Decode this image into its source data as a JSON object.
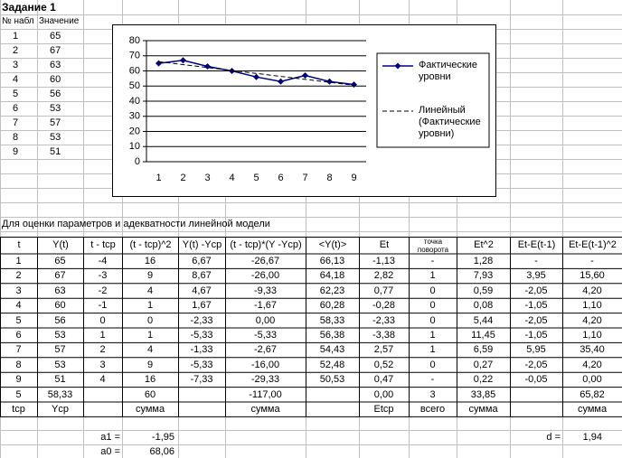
{
  "title": "Задание 1",
  "small_table": {
    "headers": [
      "№ набл",
      "Значение"
    ],
    "rows": [
      [
        "1",
        "65"
      ],
      [
        "2",
        "67"
      ],
      [
        "3",
        "63"
      ],
      [
        "4",
        "60"
      ],
      [
        "5",
        "56"
      ],
      [
        "6",
        "53"
      ],
      [
        "7",
        "57"
      ],
      [
        "8",
        "53"
      ],
      [
        "9",
        "51"
      ]
    ]
  },
  "chart_data": {
    "type": "line",
    "categories": [
      "1",
      "2",
      "3",
      "4",
      "5",
      "6",
      "7",
      "8",
      "9"
    ],
    "series": [
      {
        "name": "Фактические уровни",
        "color": "#000080",
        "marker": "diamond",
        "values": [
          65,
          67,
          63,
          60,
          56,
          53,
          57,
          53,
          51
        ]
      },
      {
        "name": "Линейный (Фактические уровни)",
        "color": "#000000",
        "dash": true,
        "values": [
          66.13,
          64.18,
          62.23,
          60.28,
          58.33,
          56.38,
          54.43,
          52.48,
          50.53
        ]
      }
    ],
    "ylim": [
      0,
      80
    ],
    "yticks": [
      0,
      10,
      20,
      30,
      40,
      50,
      60,
      70,
      80
    ],
    "grid": true,
    "legend": "right"
  },
  "section_title": "Для оценки параметров и адекватности линейной модели",
  "table": {
    "headers": [
      "t",
      "Y(t)",
      "t - tcp",
      "(t - tcp)^2",
      "Y(t) -Ycp",
      "(t - tcp)*(Y -Ycp)",
      "<Y(t)>",
      "Et",
      "точка поворота",
      "Et^2",
      "Et-E(t-1)",
      "Et-E(t-1)^2"
    ],
    "rows": [
      [
        "1",
        "65",
        "-4",
        "16",
        "6,67",
        "-26,67",
        "66,13",
        "-1,13",
        "-",
        "1,28",
        "-",
        "-"
      ],
      [
        "2",
        "67",
        "-3",
        "9",
        "8,67",
        "-26,00",
        "64,18",
        "2,82",
        "1",
        "7,93",
        "3,95",
        "15,60"
      ],
      [
        "3",
        "63",
        "-2",
        "4",
        "4,67",
        "-9,33",
        "62,23",
        "0,77",
        "0",
        "0,59",
        "-2,05",
        "4,20"
      ],
      [
        "4",
        "60",
        "-1",
        "1",
        "1,67",
        "-1,67",
        "60,28",
        "-0,28",
        "0",
        "0,08",
        "-1,05",
        "1,10"
      ],
      [
        "5",
        "56",
        "0",
        "0",
        "-2,33",
        "0,00",
        "58,33",
        "-2,33",
        "0",
        "5,44",
        "-2,05",
        "4,20"
      ],
      [
        "6",
        "53",
        "1",
        "1",
        "-5,33",
        "-5,33",
        "56,38",
        "-3,38",
        "1",
        "11,45",
        "-1,05",
        "1,10"
      ],
      [
        "7",
        "57",
        "2",
        "4",
        "-1,33",
        "-2,67",
        "54,43",
        "2,57",
        "1",
        "6,59",
        "5,95",
        "35,40"
      ],
      [
        "8",
        "53",
        "3",
        "9",
        "-5,33",
        "-16,00",
        "52,48",
        "0,52",
        "0",
        "0,27",
        "-2,05",
        "4,20"
      ],
      [
        "9",
        "51",
        "4",
        "16",
        "-7,33",
        "-29,33",
        "50,53",
        "0,47",
        "-",
        "0,22",
        "-0,05",
        "0,00"
      ]
    ],
    "summary": [
      "5",
      "58,33",
      null,
      "60",
      null,
      "-117,00",
      null,
      "0,00",
      "3",
      "33,85",
      null,
      "65,82"
    ],
    "summary_labels": [
      "tcp",
      "Ycp",
      null,
      "сумма",
      null,
      "сумма",
      null,
      "Etcp",
      "всего",
      "сумма",
      null,
      "сумма"
    ]
  },
  "params": [
    {
      "label": "a1 =",
      "value": "-1,95"
    },
    {
      "label": "a0 =",
      "value": "68,06"
    },
    {
      "label": "d =",
      "value": "1,94"
    }
  ]
}
